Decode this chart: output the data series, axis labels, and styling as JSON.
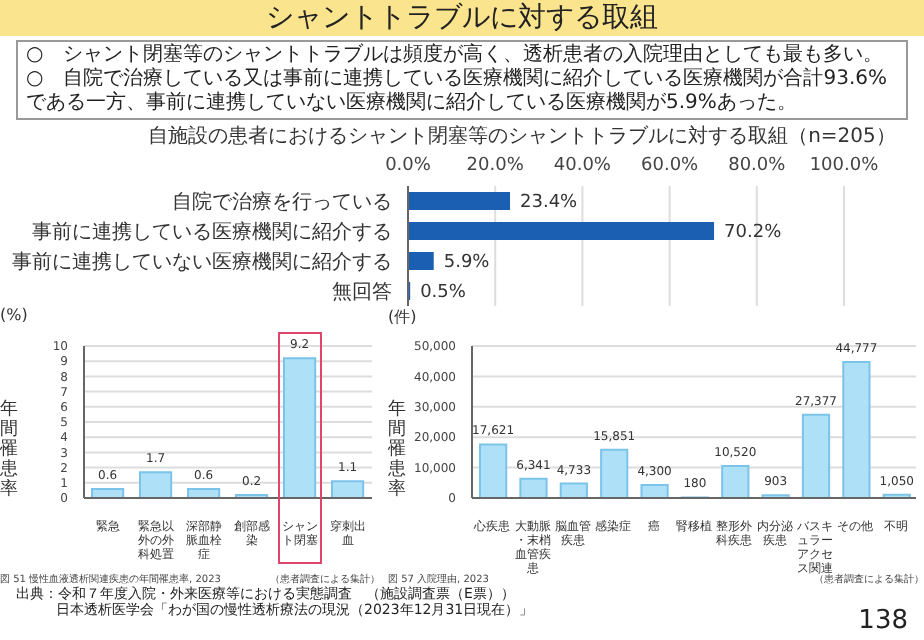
{
  "chart_data": [
    {
      "type": "bar",
      "orientation": "horizontal",
      "title": "シャントトラブルに対する取組",
      "subtitle": "自施設の患者におけるシャント閉塞等のシャントトラブルに対する取組（n=205）",
      "annotations": [
        "○　シャント閉塞等のシャントトラブルは頻度が高く、透析患者の入院理由としても最も多い。",
        "○　自院で治療している又は事前に連携している医療機関に紹介している医療機関が合計93.6%である一方、事前に連携していない医療機関に紹介している医療機関が5.9%あった。",
        "出典：令和７年度入院・外来医療等における実態調査　（施設調査票（E票））",
        "日本透析医学会「わが国の慢性透析療法の現況（2023年12月31日現在）」",
        "138"
      ],
      "categories": [
        "自院で治療を行っている",
        "事前に連携している医療機関に紹介する",
        "事前に連携していない医療機関に紹介する",
        "無回答"
      ],
      "values": [
        23.4,
        70.2,
        5.9,
        0.5
      ],
      "color": "#1b5fb3",
      "value_labels": [
        "23.4%",
        "70.2%",
        "5.9%",
        "0.5%"
      ],
      "xlim": [
        0,
        100
      ],
      "xticks": [
        {
          "value": 0,
          "label": "0.0%"
        },
        {
          "value": 20,
          "label": "20.0%"
        },
        {
          "value": 40,
          "label": "40.0%"
        },
        {
          "value": 60,
          "label": "60.0%"
        },
        {
          "value": 80,
          "label": "80.0%"
        },
        {
          "value": 100,
          "label": "100.0%"
        }
      ],
      "grid": "x"
    },
    {
      "type": "bar",
      "ylabel": "年間罹患率",
      "annotations": [
        "(%)",
        "図 51 慢性血液透析関連疾患の年間罹患率, 2023",
        "（患者調査による集計）"
      ],
      "categories": [
        "緊急",
        "緊急以外の外科処置",
        "深部静脈血栓症",
        "創部感染",
        "シャント閉塞",
        "穿刺出血"
      ],
      "values": [
        0.6,
        1.7,
        0.6,
        0.2,
        9.2,
        1.1
      ],
      "color": "#aee0f7",
      "data_labels": true,
      "ylim": [
        0,
        10
      ],
      "yticks": [
        0,
        1,
        2,
        3,
        4,
        5,
        6,
        7,
        8,
        9,
        10
      ],
      "grid": "y"
    },
    {
      "type": "bar",
      "ylabel": "年間罹患率",
      "annotations": [
        "(件)",
        "図 57 入院理由, 2023",
        "（患者調査による集計）"
      ],
      "categories": [
        "心疾患",
        "大動脈・末梢血管疾患",
        "脳血管疾患",
        "感染症",
        "癌",
        "腎移植",
        "整形外科疾患",
        "内分泌疾患",
        "バスキュラーアクセス関連",
        "その他",
        "不明"
      ],
      "values": [
        17621,
        6341,
        4733,
        15851,
        4300,
        180,
        10520,
        903,
        27377,
        44777,
        1050
      ],
      "color": "#aee0f7",
      "value_labels": [
        "17,621",
        "6,341",
        "4,733",
        "15,851",
        "4,300",
        "180",
        "10,520",
        "903",
        "27,377",
        "44,777",
        "1,050"
      ],
      "ylim": [
        0,
        50000
      ],
      "yticks": [
        0,
        {
          "value": 10000,
          "label": "10,000"
        },
        {
          "value": 20000,
          "label": "20,000"
        },
        {
          "value": 30000,
          "label": "30,000"
        },
        {
          "value": 40000,
          "label": "40,000"
        },
        {
          "value": 50000,
          "label": "50,000"
        }
      ],
      "grid": "y"
    }
  ]
}
